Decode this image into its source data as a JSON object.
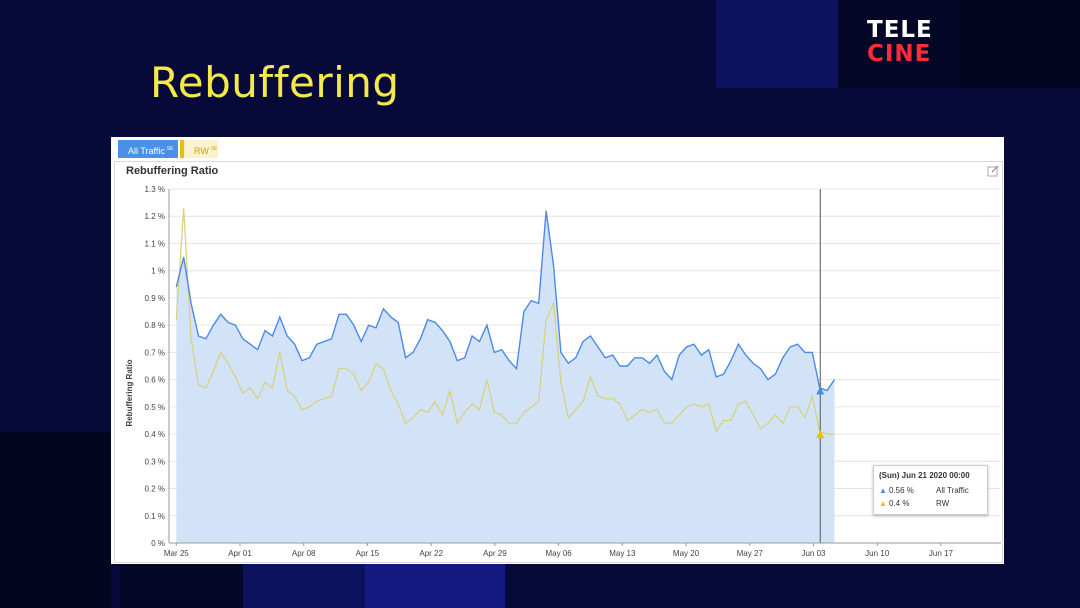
{
  "slide": {
    "title": "Rebuffering"
  },
  "logo": {
    "line1": "TELE",
    "line2": "CINE"
  },
  "tabs": [
    {
      "label": "All Traffic",
      "badge": "SE",
      "color": "#4a90e8"
    },
    {
      "label": "RW",
      "badge": "SE",
      "color": "#e5bf10"
    }
  ],
  "colors": {
    "background": "#070a38",
    "title": "#f4e94a",
    "all_traffic": "#4a8ae6",
    "rw": "#e6c400",
    "area_fill": "#d2e3f8"
  },
  "tooltip": {
    "title": "(Sun) Jun 21 2020 00:00",
    "rows": [
      {
        "value": "0.56 %",
        "name": "All Traffic"
      },
      {
        "value": "0.4 %",
        "name": "RW"
      }
    ]
  },
  "chart_data": {
    "type": "area",
    "title": "Rebuffering Ratio",
    "ylabel": "Rebuffering Ratio",
    "xlabel": "",
    "ylim": [
      0,
      1.3
    ],
    "y_ticks": [
      0,
      0.1,
      0.2,
      0.3,
      0.4,
      0.5,
      0.6,
      0.7,
      0.8,
      0.9,
      1.0,
      1.1,
      1.2,
      1.3
    ],
    "y_tick_labels": [
      "0 %",
      "0.1 %",
      "0.2 %",
      "0.3 %",
      "0.4 %",
      "0.5 %",
      "0.6 %",
      "0.7 %",
      "0.8 %",
      "0.9 %",
      "1 %",
      "1.1 %",
      "1.2 %",
      "1.3 %"
    ],
    "x_tick_labels": [
      "Mar 25",
      "Apr 01",
      "Apr 08",
      "Apr 15",
      "Apr 22",
      "Apr 29",
      "May 06",
      "May 13",
      "May 20",
      "May 27",
      "Jun 03",
      "Jun 10",
      "Jun 17"
    ],
    "x_start_day": 0,
    "x_step_days": 0.8125,
    "x_tick_days": [
      0,
      7,
      14,
      21,
      28,
      35,
      42,
      49,
      56,
      63,
      70,
      77,
      84
    ],
    "grid": true,
    "legend": "top-left",
    "series": [
      {
        "name": "All Traffic",
        "values": [
          0.94,
          1.05,
          0.88,
          0.76,
          0.75,
          0.8,
          0.84,
          0.81,
          0.8,
          0.75,
          0.73,
          0.71,
          0.78,
          0.76,
          0.83,
          0.76,
          0.73,
          0.67,
          0.68,
          0.73,
          0.74,
          0.75,
          0.84,
          0.84,
          0.8,
          0.74,
          0.8,
          0.79,
          0.86,
          0.83,
          0.81,
          0.68,
          0.7,
          0.75,
          0.82,
          0.81,
          0.78,
          0.74,
          0.67,
          0.68,
          0.76,
          0.74,
          0.8,
          0.7,
          0.71,
          0.67,
          0.64,
          0.85,
          0.89,
          0.88,
          1.22,
          1.02,
          0.7,
          0.66,
          0.68,
          0.74,
          0.76,
          0.72,
          0.68,
          0.69,
          0.65,
          0.65,
          0.68,
          0.68,
          0.66,
          0.69,
          0.63,
          0.6,
          0.69,
          0.72,
          0.73,
          0.69,
          0.71,
          0.61,
          0.62,
          0.67,
          0.73,
          0.69,
          0.66,
          0.64,
          0.6,
          0.62,
          0.68,
          0.72,
          0.73,
          0.7,
          0.7,
          0.57,
          0.56,
          0.6
        ]
      },
      {
        "name": "RW",
        "values": [
          0.82,
          1.23,
          0.75,
          0.58,
          0.57,
          0.63,
          0.7,
          0.66,
          0.61,
          0.55,
          0.57,
          0.53,
          0.59,
          0.57,
          0.7,
          0.56,
          0.54,
          0.49,
          0.5,
          0.52,
          0.53,
          0.54,
          0.64,
          0.64,
          0.62,
          0.56,
          0.59,
          0.66,
          0.64,
          0.56,
          0.51,
          0.44,
          0.46,
          0.49,
          0.48,
          0.52,
          0.47,
          0.56,
          0.44,
          0.48,
          0.51,
          0.49,
          0.6,
          0.48,
          0.47,
          0.44,
          0.44,
          0.48,
          0.5,
          0.52,
          0.82,
          0.88,
          0.59,
          0.46,
          0.49,
          0.52,
          0.61,
          0.54,
          0.53,
          0.53,
          0.51,
          0.45,
          0.47,
          0.49,
          0.48,
          0.49,
          0.44,
          0.44,
          0.47,
          0.5,
          0.51,
          0.5,
          0.51,
          0.41,
          0.45,
          0.45,
          0.51,
          0.52,
          0.47,
          0.42,
          0.44,
          0.47,
          0.44,
          0.5,
          0.5,
          0.46,
          0.54,
          0.41,
          0.4,
          0.4
        ]
      }
    ]
  }
}
